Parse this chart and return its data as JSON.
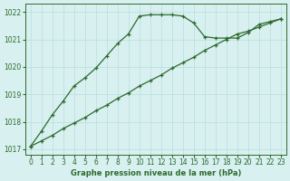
{
  "line1_x": [
    0,
    1,
    2,
    3,
    4,
    5,
    6,
    7,
    8,
    9,
    10,
    11,
    12,
    13,
    14,
    15,
    16,
    17,
    18,
    19,
    20,
    21,
    22,
    23
  ],
  "line1_y": [
    1017.1,
    1017.65,
    1018.25,
    1018.75,
    1019.3,
    1019.6,
    1019.95,
    1020.4,
    1020.85,
    1021.2,
    1021.85,
    1021.9,
    1021.9,
    1021.9,
    1021.85,
    1021.6,
    1021.1,
    1021.05,
    1021.05,
    1021.05,
    1021.25,
    1021.55,
    1021.65,
    1021.75
  ],
  "line2_x": [
    0,
    1,
    2,
    3,
    4,
    5,
    6,
    7,
    8,
    9,
    10,
    11,
    12,
    13,
    14,
    15,
    16,
    17,
    18,
    19,
    20,
    21,
    22,
    23
  ],
  "line2_y": [
    1017.1,
    1017.3,
    1017.5,
    1017.75,
    1017.95,
    1018.15,
    1018.4,
    1018.6,
    1018.85,
    1019.05,
    1019.3,
    1019.5,
    1019.7,
    1019.95,
    1020.15,
    1020.35,
    1020.6,
    1020.8,
    1021.0,
    1021.2,
    1021.3,
    1021.45,
    1021.6,
    1021.75
  ],
  "line_color": "#2d6a2d",
  "bg_color": "#d8f0f0",
  "grid_color": "#b8dede",
  "xlabel": "Graphe pression niveau de la mer (hPa)",
  "xlim": [
    -0.5,
    23.5
  ],
  "ylim": [
    1016.8,
    1022.3
  ],
  "yticks": [
    1017,
    1018,
    1019,
    1020,
    1021,
    1022
  ],
  "xticks": [
    0,
    1,
    2,
    3,
    4,
    5,
    6,
    7,
    8,
    9,
    10,
    11,
    12,
    13,
    14,
    15,
    16,
    17,
    18,
    19,
    20,
    21,
    22,
    23
  ]
}
